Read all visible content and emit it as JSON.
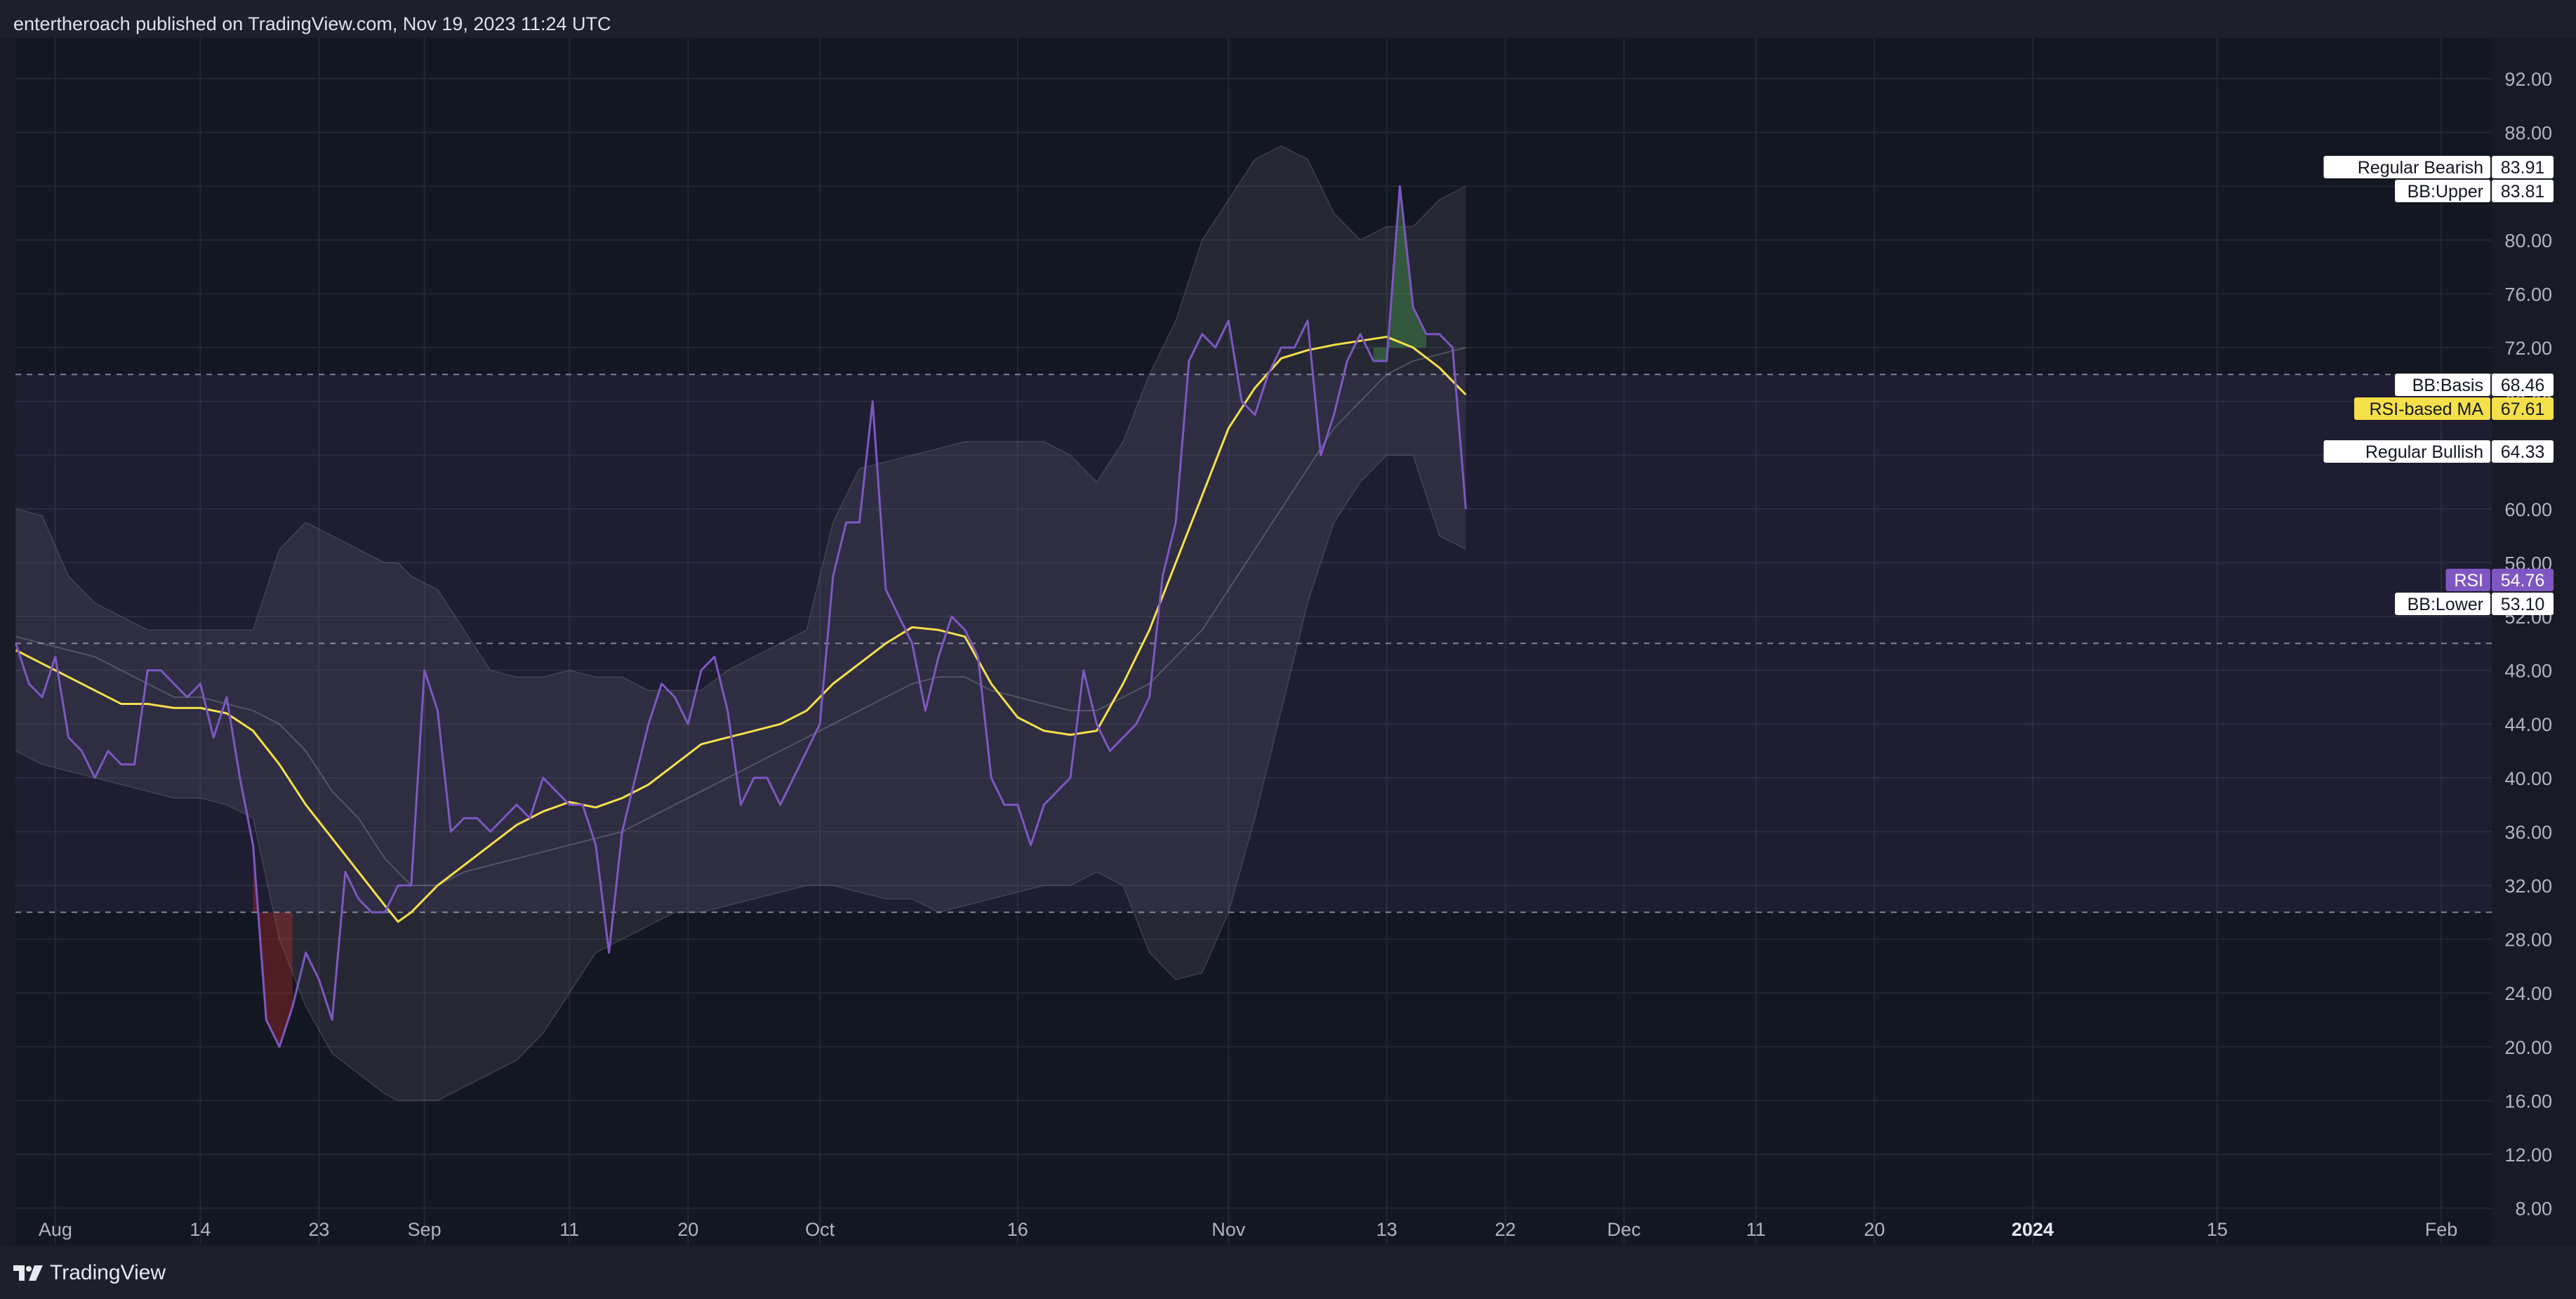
{
  "header": {
    "attribution": "entertheroach published on TradingView.com, Nov 19, 2023 11:24 UTC"
  },
  "footer": {
    "logo_text": "TradingView",
    "logo_icon": "tradingview-logo-icon"
  },
  "colors": {
    "background": "#131722",
    "header": "#1d202b",
    "rsi_line": "#7e57c2",
    "ma_line": "#f5e04a",
    "band_fill": "#787b86",
    "zone_fill": "#7e57c2",
    "bearish_fill": "#4caf50",
    "bullish_fill": "#c62828"
  },
  "chart_data": {
    "type": "line",
    "title": "",
    "xlabel": "",
    "ylabel": "",
    "y_axis_side": "right",
    "ylim": [
      8,
      94
    ],
    "y_ticks": [
      "92.00",
      "88.00",
      "84.00",
      "80.00",
      "76.00",
      "72.00",
      "68.00",
      "64.00",
      "60.00",
      "56.00",
      "52.00",
      "48.00",
      "44.00",
      "40.00",
      "36.00",
      "32.00",
      "28.00",
      "24.00",
      "20.00",
      "16.00",
      "12.00",
      "8.00"
    ],
    "x_tick_labels": [
      {
        "label": "Aug",
        "day": 3,
        "bold": false
      },
      {
        "label": "14",
        "day": 14,
        "bold": false
      },
      {
        "label": "23",
        "day": 23,
        "bold": false
      },
      {
        "label": "Sep",
        "day": 31,
        "bold": false
      },
      {
        "label": "11",
        "day": 42,
        "bold": false
      },
      {
        "label": "20",
        "day": 51,
        "bold": false
      },
      {
        "label": "Oct",
        "day": 61,
        "bold": false
      },
      {
        "label": "16",
        "day": 76,
        "bold": false
      },
      {
        "label": "Nov",
        "day": 92,
        "bold": false
      },
      {
        "label": "13",
        "day": 104,
        "bold": false
      },
      {
        "label": "22",
        "day": 113,
        "bold": false
      },
      {
        "label": "Dec",
        "day": 122,
        "bold": false
      },
      {
        "label": "11",
        "day": 132,
        "bold": false
      },
      {
        "label": "20",
        "day": 141,
        "bold": false
      },
      {
        "label": "2024",
        "day": 153,
        "bold": true
      },
      {
        "label": "15",
        "day": 167,
        "bold": false
      },
      {
        "label": "Feb",
        "day": 184,
        "bold": false
      }
    ],
    "x_range_days": [
      0,
      189
    ],
    "grid": true,
    "reference_lines": [
      70,
      50,
      30
    ],
    "zone": [
      30,
      70
    ],
    "series": [
      {
        "name": "RSI",
        "key": "rsi",
        "x": [
          0,
          1,
          2,
          3,
          4,
          5,
          6,
          7,
          8,
          9,
          10,
          11,
          12,
          13,
          14,
          15,
          16,
          17,
          18,
          19,
          20,
          21,
          22,
          23,
          24,
          25,
          26,
          27,
          28,
          29,
          30,
          31,
          32,
          33,
          34,
          35,
          36,
          37,
          38,
          39,
          40,
          41,
          42,
          43,
          44,
          45,
          46,
          47,
          48,
          49,
          50,
          51,
          52,
          53,
          54,
          55,
          56,
          57,
          58,
          59,
          60,
          61,
          62,
          63,
          64,
          65,
          66,
          67,
          68,
          69,
          70,
          71,
          72,
          73,
          74,
          75,
          76,
          77,
          78,
          79,
          80,
          81,
          82,
          83,
          84,
          85,
          86,
          87,
          88,
          89,
          90,
          91,
          92,
          93,
          94,
          95,
          96,
          97,
          98,
          99,
          100,
          101,
          102,
          103,
          104,
          105,
          106,
          107,
          108,
          109,
          110
        ],
        "values": [
          50,
          47,
          46,
          49,
          43,
          42,
          40,
          42,
          41,
          41,
          48,
          48,
          47,
          46,
          47,
          43,
          46,
          40,
          35,
          22,
          20,
          23,
          27,
          25,
          22,
          33,
          31,
          30,
          30,
          32,
          32,
          48,
          45,
          36,
          37,
          37,
          36,
          37,
          38,
          37,
          40,
          39,
          38,
          38,
          35,
          27,
          36,
          40,
          44,
          47,
          46,
          44,
          48,
          49,
          45,
          38,
          40,
          40,
          38,
          40,
          42,
          44,
          55,
          59,
          59,
          68,
          54,
          52,
          50,
          45,
          49,
          52,
          51,
          49,
          40,
          38,
          38,
          35,
          38,
          39,
          40,
          48,
          44,
          42,
          43,
          44,
          46,
          55,
          59,
          71,
          73,
          72,
          74,
          68,
          67,
          70,
          72,
          72,
          74,
          64,
          67,
          71,
          73,
          71,
          71,
          84,
          75,
          73,
          73,
          72,
          60
        ]
      },
      {
        "name": "RSI-based MA",
        "key": "ma",
        "x": [
          0,
          2,
          4,
          6,
          8,
          10,
          12,
          14,
          16,
          18,
          20,
          22,
          24,
          26,
          28,
          29,
          30,
          32,
          34,
          36,
          38,
          40,
          42,
          44,
          46,
          48,
          50,
          52,
          54,
          56,
          58,
          60,
          62,
          64,
          66,
          68,
          70,
          72,
          74,
          76,
          78,
          80,
          82,
          84,
          86,
          88,
          90,
          92,
          94,
          96,
          98,
          100,
          102,
          104,
          106,
          108,
          110
        ],
        "values": [
          49.5,
          48.5,
          47.5,
          46.5,
          45.5,
          45.5,
          45.2,
          45.2,
          44.8,
          43.5,
          41,
          38,
          35.5,
          33,
          30.5,
          29.3,
          30,
          32,
          33.5,
          35,
          36.5,
          37.5,
          38.2,
          37.8,
          38.5,
          39.5,
          41,
          42.5,
          43,
          43.5,
          44,
          45,
          47,
          48.5,
          50,
          51.2,
          51,
          50.5,
          47,
          44.5,
          43.5,
          43.2,
          43.5,
          47,
          51,
          56,
          61,
          66,
          69,
          71.2,
          71.8,
          72.2,
          72.5,
          72.8,
          72,
          70.5,
          68.5
        ]
      },
      {
        "name": "BB:Basis",
        "key": "bb_basis",
        "x": [
          0,
          2,
          4,
          6,
          8,
          10,
          12,
          14,
          16,
          18,
          20,
          22,
          24,
          26,
          28,
          29,
          30,
          32,
          34,
          36,
          38,
          40,
          42,
          44,
          46,
          48,
          50,
          52,
          54,
          56,
          58,
          60,
          62,
          64,
          66,
          68,
          70,
          72,
          74,
          76,
          78,
          80,
          82,
          84,
          86,
          88,
          90,
          92,
          94,
          96,
          98,
          100,
          102,
          104,
          106,
          108,
          110
        ],
        "values": [
          50.5,
          50,
          49.5,
          49,
          48,
          47,
          46,
          46,
          45.5,
          45,
          44,
          42,
          39,
          37,
          34,
          33,
          32,
          32,
          33,
          33.5,
          34,
          34.5,
          35,
          35.5,
          36,
          37,
          38,
          39,
          40,
          41,
          42,
          43,
          44,
          45,
          46,
          47,
          47.5,
          47.5,
          46.5,
          46,
          45.5,
          45,
          45,
          46,
          47,
          49,
          51,
          54,
          57,
          60,
          63,
          66,
          68,
          70,
          71,
          71.5,
          72
        ]
      },
      {
        "name": "BB:Upper",
        "key": "bb_upper",
        "x": [
          0,
          2,
          4,
          6,
          8,
          10,
          12,
          14,
          16,
          18,
          20,
          22,
          24,
          26,
          28,
          29,
          30,
          32,
          34,
          36,
          38,
          40,
          42,
          44,
          46,
          48,
          50,
          52,
          54,
          56,
          58,
          60,
          62,
          64,
          66,
          68,
          70,
          72,
          74,
          76,
          78,
          80,
          82,
          84,
          86,
          88,
          90,
          92,
          94,
          96,
          98,
          100,
          102,
          104,
          106,
          108,
          110
        ],
        "values": [
          60,
          59.5,
          55,
          53,
          52,
          51,
          51,
          51,
          51,
          51,
          57,
          59,
          58,
          57,
          56,
          56,
          55,
          54,
          51,
          48,
          47.5,
          47.5,
          48,
          47.5,
          47.5,
          46.5,
          46.5,
          46.5,
          48,
          49,
          50,
          51,
          59,
          63,
          63.5,
          64,
          64.5,
          65,
          65,
          65,
          65,
          64,
          62,
          65,
          70,
          74,
          80,
          83,
          86,
          87,
          86,
          82,
          80,
          81,
          81,
          83,
          84
        ]
      },
      {
        "name": "BB:Lower",
        "key": "bb_lower",
        "x": [
          0,
          2,
          4,
          6,
          8,
          10,
          12,
          14,
          16,
          18,
          20,
          22,
          24,
          26,
          28,
          29,
          30,
          32,
          34,
          36,
          38,
          40,
          42,
          44,
          46,
          48,
          50,
          52,
          54,
          56,
          58,
          60,
          62,
          64,
          66,
          68,
          70,
          72,
          74,
          76,
          78,
          80,
          82,
          84,
          86,
          88,
          90,
          92,
          94,
          96,
          98,
          100,
          102,
          104,
          106,
          108,
          110
        ],
        "values": [
          42,
          41,
          40.5,
          40,
          39.5,
          39,
          38.5,
          38.5,
          38,
          37,
          28,
          23,
          19.5,
          18,
          16.5,
          16,
          16,
          16,
          17,
          18,
          19,
          21,
          24,
          27,
          28,
          29,
          30,
          30,
          30.5,
          31,
          31.5,
          32,
          32,
          31.5,
          31,
          31,
          30,
          30.5,
          31,
          31.5,
          32,
          32,
          33,
          32,
          27,
          25,
          25.5,
          30,
          37,
          45,
          53,
          59,
          62,
          64,
          64,
          58,
          57
        ]
      }
    ],
    "price_labels": [
      {
        "name": "Regular Bearish",
        "value": "83.91",
        "style": "white"
      },
      {
        "name": "BB:Upper",
        "value": "83.81",
        "style": "white"
      },
      {
        "name": "BB:Basis",
        "value": "68.46",
        "style": "white"
      },
      {
        "name": "RSI-based MA",
        "value": "67.61",
        "style": "yellow"
      },
      {
        "name": "Regular Bullish",
        "value": "64.33",
        "style": "white"
      },
      {
        "name": "RSI",
        "value": "54.76",
        "style": "purple"
      },
      {
        "name": "BB:Lower",
        "value": "53.10",
        "style": "white"
      }
    ]
  }
}
